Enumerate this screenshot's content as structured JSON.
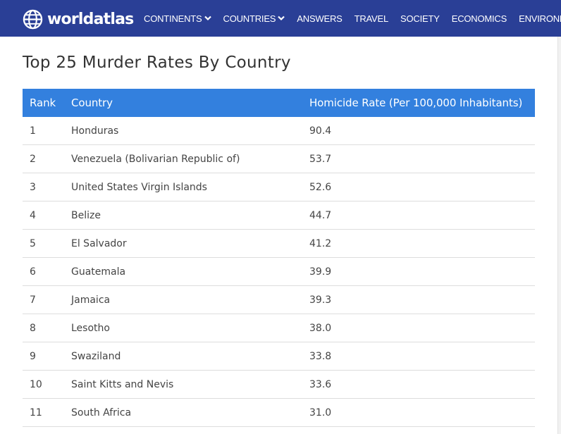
{
  "nav": {
    "logo_text": "worldatlas",
    "items": [
      {
        "label": "CONTINENTS",
        "icon": "chevron-down-icon"
      },
      {
        "label": "COUNTRIES",
        "icon": "chevron-down-icon"
      },
      {
        "label": "ANSWERS"
      },
      {
        "label": "TRAVEL"
      },
      {
        "label": "SOCIETY"
      },
      {
        "label": "ECONOMICS"
      },
      {
        "label": "ENVIRONMENT"
      }
    ],
    "background_color": "#2a3f96"
  },
  "article": {
    "title": "Top 25 Murder Rates By Country"
  },
  "table": {
    "header_color": "#3380de",
    "headers": [
      "Rank",
      "Country",
      "Homicide Rate (Per 100,000 Inhabitants)"
    ],
    "rows": [
      [
        "1",
        "Honduras",
        "90.4"
      ],
      [
        "2",
        "Venezuela (Bolivarian Republic of)",
        "53.7"
      ],
      [
        "3",
        "United States Virgin Islands",
        "52.6"
      ],
      [
        "4",
        "Belize",
        "44.7"
      ],
      [
        "5",
        "El Salvador",
        "41.2"
      ],
      [
        "6",
        "Guatemala",
        "39.9"
      ],
      [
        "7",
        "Jamaica",
        "39.3"
      ],
      [
        "8",
        "Lesotho",
        "38.0"
      ],
      [
        "9",
        "Swaziland",
        "33.8"
      ],
      [
        "10",
        "Saint Kitts and Nevis",
        "33.6"
      ],
      [
        "11",
        "South Africa",
        "31.0"
      ]
    ]
  }
}
